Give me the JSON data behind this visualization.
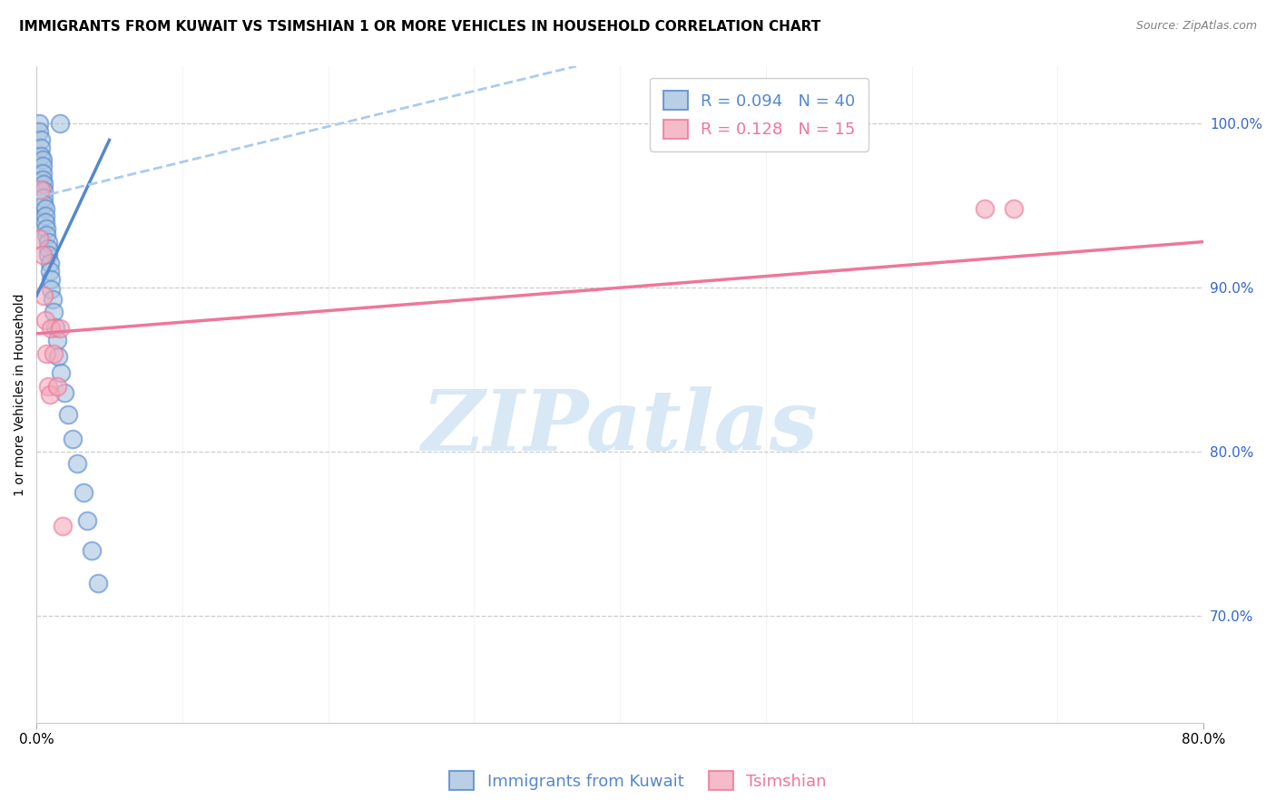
{
  "title": "IMMIGRANTS FROM KUWAIT VS TSIMSHIAN 1 OR MORE VEHICLES IN HOUSEHOLD CORRELATION CHART",
  "source": "Source: ZipAtlas.com",
  "ylabel": "1 or more Vehicles in Household",
  "ytick_labels": [
    "100.0%",
    "90.0%",
    "80.0%",
    "70.0%"
  ],
  "ytick_values": [
    1.0,
    0.9,
    0.8,
    0.7
  ],
  "xtick_labels": [
    "0.0%",
    "80.0%"
  ],
  "xtick_positions": [
    0.0,
    0.8
  ],
  "xlim": [
    0.0,
    0.8
  ],
  "ylim": [
    0.635,
    1.035
  ],
  "blue_R": 0.094,
  "blue_N": 40,
  "pink_R": 0.128,
  "pink_N": 15,
  "blue_color": "#A8C4E0",
  "pink_color": "#F4AABB",
  "blue_edge_color": "#5588CC",
  "pink_edge_color": "#EE7799",
  "dashed_color": "#AACCEE",
  "watermark_text": "ZIPatlas",
  "watermark_color": "#D8E8F5",
  "blue_scatter_x": [
    0.002,
    0.002,
    0.003,
    0.003,
    0.003,
    0.004,
    0.004,
    0.004,
    0.004,
    0.005,
    0.005,
    0.005,
    0.005,
    0.006,
    0.006,
    0.006,
    0.007,
    0.007,
    0.008,
    0.008,
    0.008,
    0.009,
    0.009,
    0.01,
    0.01,
    0.011,
    0.012,
    0.013,
    0.014,
    0.015,
    0.017,
    0.019,
    0.022,
    0.025,
    0.028,
    0.032,
    0.035,
    0.038,
    0.042,
    0.016
  ],
  "blue_scatter_y": [
    1.0,
    0.995,
    0.99,
    0.985,
    0.98,
    0.978,
    0.974,
    0.97,
    0.966,
    0.963,
    0.959,
    0.955,
    0.951,
    0.948,
    0.944,
    0.94,
    0.936,
    0.932,
    0.928,
    0.924,
    0.92,
    0.915,
    0.91,
    0.905,
    0.899,
    0.893,
    0.885,
    0.876,
    0.868,
    0.858,
    0.848,
    0.836,
    0.823,
    0.808,
    0.793,
    0.775,
    0.758,
    0.74,
    0.72,
    1.0
  ],
  "pink_scatter_x": [
    0.002,
    0.003,
    0.004,
    0.005,
    0.006,
    0.007,
    0.008,
    0.009,
    0.01,
    0.012,
    0.014,
    0.016,
    0.018,
    0.65,
    0.67
  ],
  "pink_scatter_y": [
    0.93,
    0.96,
    0.92,
    0.895,
    0.88,
    0.86,
    0.84,
    0.835,
    0.875,
    0.86,
    0.84,
    0.875,
    0.755,
    0.948,
    0.948
  ],
  "blue_line_x": [
    0.0,
    0.05
  ],
  "blue_line_y": [
    0.895,
    0.99
  ],
  "dashed_line_x": [
    0.0,
    0.37
  ],
  "dashed_line_y": [
    0.955,
    1.035
  ],
  "pink_line_x": [
    0.0,
    0.8
  ],
  "pink_line_y": [
    0.872,
    0.928
  ],
  "legend_bottom_labels": [
    "Immigrants from Kuwait",
    "Tsimshian"
  ],
  "title_fontsize": 11,
  "axis_label_fontsize": 10,
  "tick_fontsize": 11,
  "legend_fontsize": 13,
  "source_fontsize": 9
}
